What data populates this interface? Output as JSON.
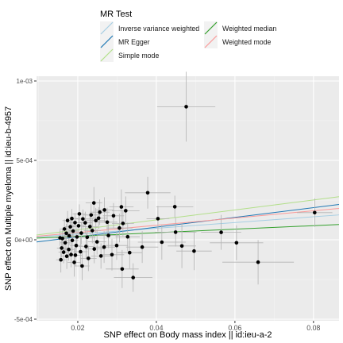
{
  "legend": {
    "title": "MR Test",
    "placement": "top",
    "entries": [
      {
        "label": "Inverse variance weighted",
        "color": "#a6cee3"
      },
      {
        "label": "MR Egger",
        "color": "#1f78b4"
      },
      {
        "label": "Simple mode",
        "color": "#b2df8a"
      },
      {
        "label": "Weighted median",
        "color": "#33a02c"
      },
      {
        "label": "Weighted mode",
        "color": "#fb9a99"
      }
    ]
  },
  "chart_data": {
    "type": "scatter",
    "xlabel": "SNP effect on Body mass index || id:ieu-a-2",
    "ylabel": "SNP effect on Multiple myeloma || id:ieu-b-4957",
    "xlim": [
      0.0095,
      0.0865
    ],
    "ylim": [
      -0.00051,
      0.00103
    ],
    "x_ticks": [
      0.02,
      0.04,
      0.06,
      0.08
    ],
    "x_tick_labels": [
      "0.02",
      "0.04",
      "0.06",
      "0.08"
    ],
    "y_ticks": [
      -0.0005,
      0.0,
      0.0005,
      0.001
    ],
    "y_tick_labels": [
      "-5e-04",
      "0e+00",
      "5e-04",
      "1e-03"
    ],
    "grid": true,
    "background": "#ebebeb",
    "points": [
      {
        "x": 0.0476,
        "y": 0.000838,
        "xerr": 0.0074,
        "yerr": 0.00022
      },
      {
        "x": 0.0378,
        "y": 0.000296,
        "xerr": 0.0058,
        "yerr": 0.0001
      },
      {
        "x": 0.0447,
        "y": 0.000208,
        "xerr": 0.0047,
        "yerr": 7e-05
      },
      {
        "x": 0.0404,
        "y": 0.000133,
        "xerr": 0.0029,
        "yerr": 8e-05
      },
      {
        "x": 0.0449,
        "y": 4.8e-05,
        "xerr": 0.0053,
        "yerr": 9e-05
      },
      {
        "x": 0.0414,
        "y": -1.5e-05,
        "xerr": 0.0061,
        "yerr": 0.00011
      },
      {
        "x": 0.0465,
        "y": -3.9e-05,
        "xerr": 0.0036,
        "yerr": 0.00014
      },
      {
        "x": 0.0496,
        "y": -7.1e-05,
        "xerr": 0.0045,
        "yerr": 0.00012
      },
      {
        "x": 0.0565,
        "y": 4.7e-05,
        "xerr": 0.0051,
        "yerr": 0.00011
      },
      {
        "x": 0.0604,
        "y": -1.9e-05,
        "xerr": 0.0068,
        "yerr": 0.00011
      },
      {
        "x": 0.0659,
        "y": -0.000141,
        "xerr": 0.0091,
        "yerr": 0.00014
      },
      {
        "x": 0.0803,
        "y": 0.000171,
        "xerr": 0.0045,
        "yerr": 9e-05
      },
      {
        "x": 0.0364,
        "y": -4.6e-05,
        "xerr": 0.0041,
        "yerr": 0.0001
      },
      {
        "x": 0.0341,
        "y": -0.000238,
        "xerr": 0.0049,
        "yerr": 9e-05
      },
      {
        "x": 0.0313,
        "y": -0.000184,
        "xerr": 0.0042,
        "yerr": 0.00012
      },
      {
        "x": 0.0322,
        "y": 0.000183,
        "xerr": 0.0035,
        "yerr": 9e-05
      },
      {
        "x": 0.0311,
        "y": 0.000207,
        "xerr": 0.0031,
        "yerr": 0.00011
      },
      {
        "x": 0.0315,
        "y": 0.000103,
        "xerr": 0.0028,
        "yerr": 8e-05
      },
      {
        "x": 0.0306,
        "y": 7.4e-05,
        "xerr": 0.0033,
        "yerr": 9e-05
      },
      {
        "x": 0.0332,
        "y": -8.1e-05,
        "xerr": 0.0032,
        "yerr": 0.0001
      },
      {
        "x": 0.0299,
        "y": -3.6e-05,
        "xerr": 0.0029,
        "yerr": 9e-05
      },
      {
        "x": 0.0278,
        "y": 2.7e-05,
        "xerr": 0.0027,
        "yerr": 8e-05
      },
      {
        "x": 0.0275,
        "y": 0.000111,
        "xerr": 0.0026,
        "yerr": 9e-05
      },
      {
        "x": 0.0267,
        "y": -4.6e-05,
        "xerr": 0.0028,
        "yerr": 0.0001
      },
      {
        "x": 0.0287,
        "y": -9.4e-05,
        "xerr": 0.0031,
        "yerr": 0.0001
      },
      {
        "x": 0.0256,
        "y": 0.000174,
        "xerr": 0.0025,
        "yerr": 8e-05
      },
      {
        "x": 0.0253,
        "y": 0.000136,
        "xerr": 0.0022,
        "yerr": 7e-05
      },
      {
        "x": 0.0246,
        "y": 0.000121,
        "xerr": 0.0024,
        "yerr": 8e-05
      },
      {
        "x": 0.0241,
        "y": 0.000232,
        "xerr": 0.0021,
        "yerr": 0.0001
      },
      {
        "x": 0.0237,
        "y": 5.8e-05,
        "xerr": 0.0022,
        "yerr": 8e-05
      },
      {
        "x": 0.0231,
        "y": 8.3e-05,
        "xerr": 0.002,
        "yerr": 7e-05
      },
      {
        "x": 0.0242,
        "y": -5.8e-05,
        "xerr": 0.0023,
        "yerr": 9e-05
      },
      {
        "x": 0.0259,
        "y": -0.000102,
        "xerr": 0.0025,
        "yerr": 8e-05
      },
      {
        "x": 0.0224,
        "y": 1.6e-05,
        "xerr": 0.0021,
        "yerr": 7e-05
      },
      {
        "x": 0.0219,
        "y": 0.000107,
        "xerr": 0.0018,
        "yerr": 7e-05
      },
      {
        "x": 0.0221,
        "y": -4.2e-05,
        "xerr": 0.002,
        "yerr": 8e-05
      },
      {
        "x": 0.0213,
        "y": 0.000131,
        "xerr": 0.0018,
        "yerr": 6e-05
      },
      {
        "x": 0.0209,
        "y": 4.2e-05,
        "xerr": 0.0019,
        "yerr": 7e-05
      },
      {
        "x": 0.0207,
        "y": -7.5e-05,
        "xerr": 0.0018,
        "yerr": 9e-05
      },
      {
        "x": 0.0202,
        "y": 8.8e-05,
        "xerr": 0.0016,
        "yerr": 6e-05
      },
      {
        "x": 0.0198,
        "y": 1.8e-05,
        "xerr": 0.0017,
        "yerr": 7e-05
      },
      {
        "x": 0.0196,
        "y": -3.6e-05,
        "xerr": 0.0016,
        "yerr": 7e-05
      },
      {
        "x": 0.0193,
        "y": 0.000108,
        "xerr": 0.0015,
        "yerr": 6e-05
      },
      {
        "x": 0.0191,
        "y": -0.000142,
        "xerr": 0.0017,
        "yerr": 9e-05
      },
      {
        "x": 0.0188,
        "y": 5.5e-05,
        "xerr": 0.0015,
        "yerr": 6e-05
      },
      {
        "x": 0.0186,
        "y": -4e-06,
        "xerr": 0.0016,
        "yerr": 7e-05
      },
      {
        "x": 0.0183,
        "y": -9.3e-05,
        "xerr": 0.0014,
        "yerr": 8e-05
      },
      {
        "x": 0.0181,
        "y": 8.2e-05,
        "xerr": 0.0014,
        "yerr": 6e-05
      },
      {
        "x": 0.0178,
        "y": 2.5e-05,
        "xerr": 0.0015,
        "yerr": 6e-05
      },
      {
        "x": 0.0177,
        "y": -6.1e-05,
        "xerr": 0.0014,
        "yerr": 7e-05
      },
      {
        "x": 0.0174,
        "y": 0.000121,
        "xerr": 0.0013,
        "yerr": 6e-05
      },
      {
        "x": 0.0172,
        "y": -0.000104,
        "xerr": 0.0014,
        "yerr": 8e-05
      },
      {
        "x": 0.0171,
        "y": 4.1e-05,
        "xerr": 0.0013,
        "yerr": 6e-05
      },
      {
        "x": 0.0168,
        "y": -1.9e-05,
        "xerr": 0.0013,
        "yerr": 6e-05
      },
      {
        "x": 0.0166,
        "y": 6.8e-05,
        "xerr": 0.0012,
        "yerr": 6e-05
      },
      {
        "x": 0.0164,
        "y": -7.8e-05,
        "xerr": 0.0013,
        "yerr": 7e-05
      },
      {
        "x": 0.0161,
        "y": 8e-06,
        "xerr": 0.0012,
        "yerr": 6e-05
      },
      {
        "x": 0.0159,
        "y": -5.2e-05,
        "xerr": 0.0012,
        "yerr": 6e-05
      },
      {
        "x": 0.0157,
        "y": -0.000126,
        "xerr": 0.0012,
        "yerr": 8e-05
      },
      {
        "x": 0.0155,
        "y": 1.2e-05,
        "xerr": 0.0011,
        "yerr": 5e-05
      },
      {
        "x": 0.0268,
        "y": 0.000188,
        "xerr": 0.0024,
        "yerr": 8e-05
      },
      {
        "x": 0.0291,
        "y": 0.000151,
        "xerr": 0.0027,
        "yerr": 8e-05
      },
      {
        "x": 0.0327,
        "y": 1.9e-05,
        "xerr": 0.0031,
        "yerr": 9e-05
      },
      {
        "x": 0.0227,
        "y": -0.000117,
        "xerr": 0.0021,
        "yerr": 8e-05
      },
      {
        "x": 0.0234,
        "y": 0.000156,
        "xerr": 0.0021,
        "yerr": 7e-05
      },
      {
        "x": 0.0249,
        "y": -1.3e-05,
        "xerr": 0.0023,
        "yerr": 8e-05
      },
      {
        "x": 0.0211,
        "y": -0.000165,
        "xerr": 0.0019,
        "yerr": 9e-05
      },
      {
        "x": 0.0204,
        "y": 0.000163,
        "xerr": 0.0017,
        "yerr": 6e-05
      },
      {
        "x": 0.0194,
        "y": -9.7e-05,
        "xerr": 0.0016,
        "yerr": 7e-05
      },
      {
        "x": 0.0185,
        "y": 0.000134,
        "xerr": 0.0015,
        "yerr": 6e-05
      }
    ],
    "lines": [
      {
        "name": "Inverse variance weighted",
        "color": "#a6cee3",
        "intercept": 0,
        "slope": 0.00181
      },
      {
        "name": "MR Egger",
        "color": "#1f78b4",
        "intercept": -4.3e-05,
        "slope": 0.003069
      },
      {
        "name": "Simple mode",
        "color": "#b2df8a",
        "intercept": 0,
        "slope": 0.003134
      },
      {
        "name": "Weighted median",
        "color": "#33a02c",
        "intercept": 0,
        "slope": 0.001111
      },
      {
        "name": "Weighted mode",
        "color": "#fb9a99",
        "intercept": 0,
        "slope": 0.002283
      }
    ]
  }
}
